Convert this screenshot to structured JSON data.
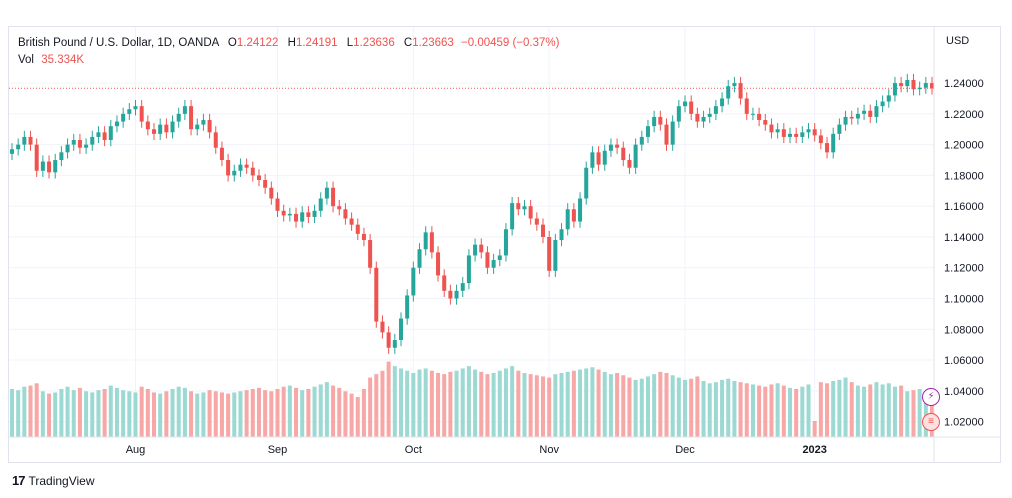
{
  "legend": {
    "symbol": "British Pound / U.S. Dollar, 1D, OANDA",
    "o_key": "O",
    "o_val": "1.24122",
    "h_key": "H",
    "h_val": "1.24191",
    "l_key": "L",
    "l_val": "1.23636",
    "c_key": "C",
    "c_val": "1.23663",
    "change": "−0.00459 (−0.37%)",
    "vol_key": "Vol",
    "vol_val": "35.334K"
  },
  "currency_label": "USD",
  "footer": {
    "brand": "TradingView",
    "logo_icon": "tradingview-logo-icon"
  },
  "colors": {
    "up": "#26a69a",
    "down": "#ef5350",
    "vol_up": "#9cd9d2",
    "vol_down": "#f7a8a6",
    "last_line": "#ef5350",
    "grid": "#f0f3fa"
  },
  "chart_data": {
    "type": "candlestick",
    "title": "British Pound / U.S. Dollar, 1D, OANDA",
    "ylabel": "USD",
    "ylim": [
      1.01,
      1.255
    ],
    "y_ticks": [
      "1.24000",
      "1.22000",
      "1.20000",
      "1.18000",
      "1.16000",
      "1.14000",
      "1.12000",
      "1.10000",
      "1.08000",
      "1.06000",
      "1.04000",
      "1.02000"
    ],
    "x_ticks": [
      {
        "label": "Aug",
        "index": 20
      },
      {
        "label": "Sep",
        "index": 43
      },
      {
        "label": "Oct",
        "index": 65
      },
      {
        "label": "Nov",
        "index": 87
      },
      {
        "label": "Dec",
        "index": 109
      },
      {
        "label": "2023",
        "index": 130
      }
    ],
    "last_close": 1.23663,
    "close": [
      1.197,
      1.2,
      1.205,
      1.2,
      1.183,
      1.189,
      1.182,
      1.19,
      1.195,
      1.2,
      1.203,
      1.198,
      1.2,
      1.205,
      1.208,
      1.203,
      1.212,
      1.215,
      1.22,
      1.223,
      1.225,
      1.215,
      1.21,
      1.207,
      1.213,
      1.208,
      1.215,
      1.22,
      1.225,
      1.21,
      1.213,
      1.216,
      1.208,
      1.198,
      1.19,
      1.18,
      1.183,
      1.187,
      1.185,
      1.18,
      1.177,
      1.172,
      1.165,
      1.157,
      1.154,
      1.155,
      1.15,
      1.156,
      1.153,
      1.157,
      1.165,
      1.172,
      1.16,
      1.158,
      1.152,
      1.148,
      1.142,
      1.138,
      1.12,
      1.085,
      1.078,
      1.068,
      1.073,
      1.087,
      1.102,
      1.12,
      1.132,
      1.143,
      1.13,
      1.115,
      1.105,
      1.1,
      1.105,
      1.11,
      1.128,
      1.135,
      1.13,
      1.12,
      1.125,
      1.128,
      1.145,
      1.162,
      1.158,
      1.16,
      1.152,
      1.148,
      1.14,
      1.118,
      1.138,
      1.145,
      1.158,
      1.15,
      1.165,
      1.185,
      1.195,
      1.187,
      1.196,
      1.2,
      1.198,
      1.19,
      1.185,
      1.2,
      1.205,
      1.212,
      1.218,
      1.213,
      1.2,
      1.215,
      1.225,
      1.228,
      1.22,
      1.215,
      1.218,
      1.22,
      1.225,
      1.23,
      1.238,
      1.24,
      1.23,
      1.22,
      1.22,
      1.216,
      1.213,
      1.208,
      1.21,
      1.205,
      1.207,
      1.205,
      1.208,
      1.21,
      1.206,
      1.201,
      1.195,
      1.207,
      1.213,
      1.218,
      1.217,
      1.22,
      1.222,
      1.218,
      1.225,
      1.228,
      1.232,
      1.24,
      1.238,
      1.242,
      1.236,
      1.237,
      1.24,
      1.2366
    ],
    "volume_ref": [
      42,
      41,
      44,
      45,
      47,
      40,
      38,
      39,
      42,
      44,
      41,
      43,
      40,
      39,
      41,
      42,
      45,
      43,
      41,
      40,
      39,
      44,
      42,
      39,
      38,
      40,
      42,
      44,
      43,
      40,
      38,
      39,
      41,
      40,
      39,
      38,
      39,
      40,
      41,
      42,
      43,
      41,
      40,
      42,
      44,
      45,
      43,
      41,
      42,
      44,
      46,
      48,
      45,
      43,
      40,
      38,
      35,
      42,
      52,
      55,
      58,
      66,
      62,
      60,
      58,
      56,
      59,
      60,
      58,
      56,
      55,
      57,
      58,
      60,
      62,
      59,
      57,
      55,
      56,
      58,
      60,
      62,
      58,
      56,
      55,
      54,
      53,
      52,
      55,
      56,
      57,
      58,
      59,
      60,
      61,
      59,
      57,
      55,
      56,
      54,
      52,
      50,
      51,
      53,
      55,
      57,
      56,
      54,
      52,
      50,
      51,
      53,
      49,
      47,
      48,
      50,
      51,
      49,
      48,
      47,
      46,
      45,
      44,
      46,
      47,
      45,
      43,
      42,
      44,
      46,
      14,
      48,
      47,
      49,
      50,
      52,
      48,
      45,
      44,
      46,
      48,
      46,
      47,
      44,
      45,
      40,
      41,
      42,
      38,
      35
    ]
  }
}
